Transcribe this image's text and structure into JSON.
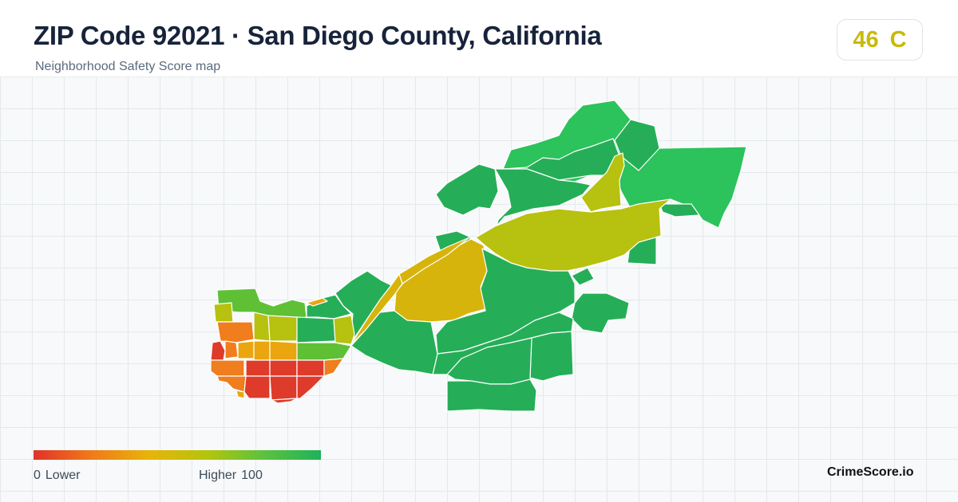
{
  "header": {
    "title": "ZIP Code 92021 · San Diego County, California",
    "subtitle": "Neighborhood Safety Score map"
  },
  "score_badge": {
    "score": "46",
    "grade": "C",
    "color": "#c9b90b"
  },
  "legend": {
    "low_value": "0",
    "low_label": "Lower",
    "high_label": "Higher",
    "high_value": "100",
    "gradient_colors": [
      "#e0322a",
      "#f07a1a",
      "#e8b30a",
      "#b6c40c",
      "#5cc23e",
      "#1fb25a"
    ]
  },
  "brand": "CrimeScore.io",
  "map": {
    "score_colors": {
      "very_low": "#de3b2b",
      "low": "#f07d1e",
      "mid_low": "#eaa50f",
      "mid": "#d7b40c",
      "mid_high": "#b7c10f",
      "high": "#5fc036",
      "very_high": "#25ae57",
      "top": "#2cc25c"
    }
  }
}
